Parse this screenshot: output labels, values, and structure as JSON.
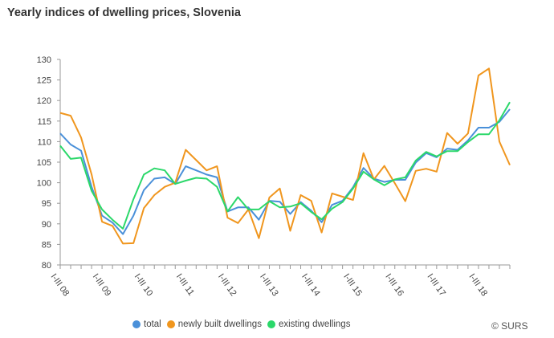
{
  "title": "Yearly indices of dwelling prices, Slovenia",
  "credit": "© SURS",
  "chart_data": {
    "type": "line",
    "title": "Yearly indices of dwelling prices, Slovenia",
    "xlabel": "",
    "ylabel": "",
    "ylim": [
      80,
      130
    ],
    "yticks": [
      80,
      85,
      90,
      95,
      100,
      105,
      110,
      115,
      120,
      125,
      130
    ],
    "grid": false,
    "legend_position": "bottom",
    "x_tick_labels": [
      "I-III 08",
      "I-III 09",
      "I-III 10",
      "I-III 11",
      "I-III 12",
      "I-III 13",
      "I-III 14",
      "I-III 15",
      "I-III 16",
      "I-III 17",
      "I-III 18"
    ],
    "x": [
      "2008Q1",
      "2008Q2",
      "2008Q3",
      "2008Q4",
      "2009Q1",
      "2009Q2",
      "2009Q3",
      "2009Q4",
      "2010Q1",
      "2010Q2",
      "2010Q3",
      "2010Q4",
      "2011Q1",
      "2011Q2",
      "2011Q3",
      "2011Q4",
      "2012Q1",
      "2012Q2",
      "2012Q3",
      "2012Q4",
      "2013Q1",
      "2013Q2",
      "2013Q3",
      "2013Q4",
      "2014Q1",
      "2014Q2",
      "2014Q3",
      "2014Q4",
      "2015Q1",
      "2015Q2",
      "2015Q3",
      "2015Q4",
      "2016Q1",
      "2016Q2",
      "2016Q3",
      "2016Q4",
      "2017Q1",
      "2017Q2",
      "2017Q3",
      "2017Q4",
      "2018Q1",
      "2018Q2",
      "2018Q3",
      "2018Q4"
    ],
    "series": [
      {
        "name": "total",
        "color": "#4a90d9",
        "values": [
          112,
          109.3,
          107.8,
          99,
          92,
          90.3,
          87.5,
          92,
          98.2,
          101,
          101.3,
          99.7,
          104,
          103,
          102,
          101.3,
          93,
          94,
          94,
          91,
          95.6,
          95.4,
          92.4,
          95.3,
          93.2,
          90.4,
          94.6,
          95.6,
          98.9,
          103.6,
          101,
          100.2,
          100.7,
          100.7,
          104.9,
          107.2,
          106.2,
          108.3,
          108,
          110.3,
          113.4,
          113.4,
          114.8,
          117.9
        ]
      },
      {
        "name": "newly built dwellings",
        "color": "#f0961e",
        "values": [
          117,
          116.3,
          111,
          102,
          90.5,
          89.5,
          85.2,
          85.3,
          93.8,
          97,
          99,
          100,
          108,
          105.5,
          103,
          104,
          91.5,
          90.2,
          93.5,
          86.5,
          96.4,
          98.6,
          88.3,
          97,
          95.6,
          87.9,
          97.4,
          96.6,
          95.8,
          107.2,
          100.8,
          104.1,
          99.9,
          95.5,
          102.9,
          103.4,
          102.7,
          112.1,
          109.5,
          112,
          126.1,
          127.8,
          110,
          104.3
        ]
      },
      {
        "name": "existing dwellings",
        "color": "#2bd86a",
        "values": [
          109,
          105.8,
          106.1,
          98,
          93.5,
          91,
          88.8,
          96,
          102,
          103.5,
          103,
          99.7,
          100.5,
          101.2,
          101,
          99,
          93,
          96.5,
          93.5,
          93.5,
          95.5,
          94,
          94.2,
          95,
          92.9,
          91.1,
          93.7,
          95.3,
          98.6,
          102.7,
          100.8,
          99.4,
          100.8,
          101.3,
          105.4,
          107.5,
          106.4,
          107.7,
          107.7,
          109.9,
          111.8,
          111.8,
          115.2,
          119.6
        ]
      }
    ]
  }
}
